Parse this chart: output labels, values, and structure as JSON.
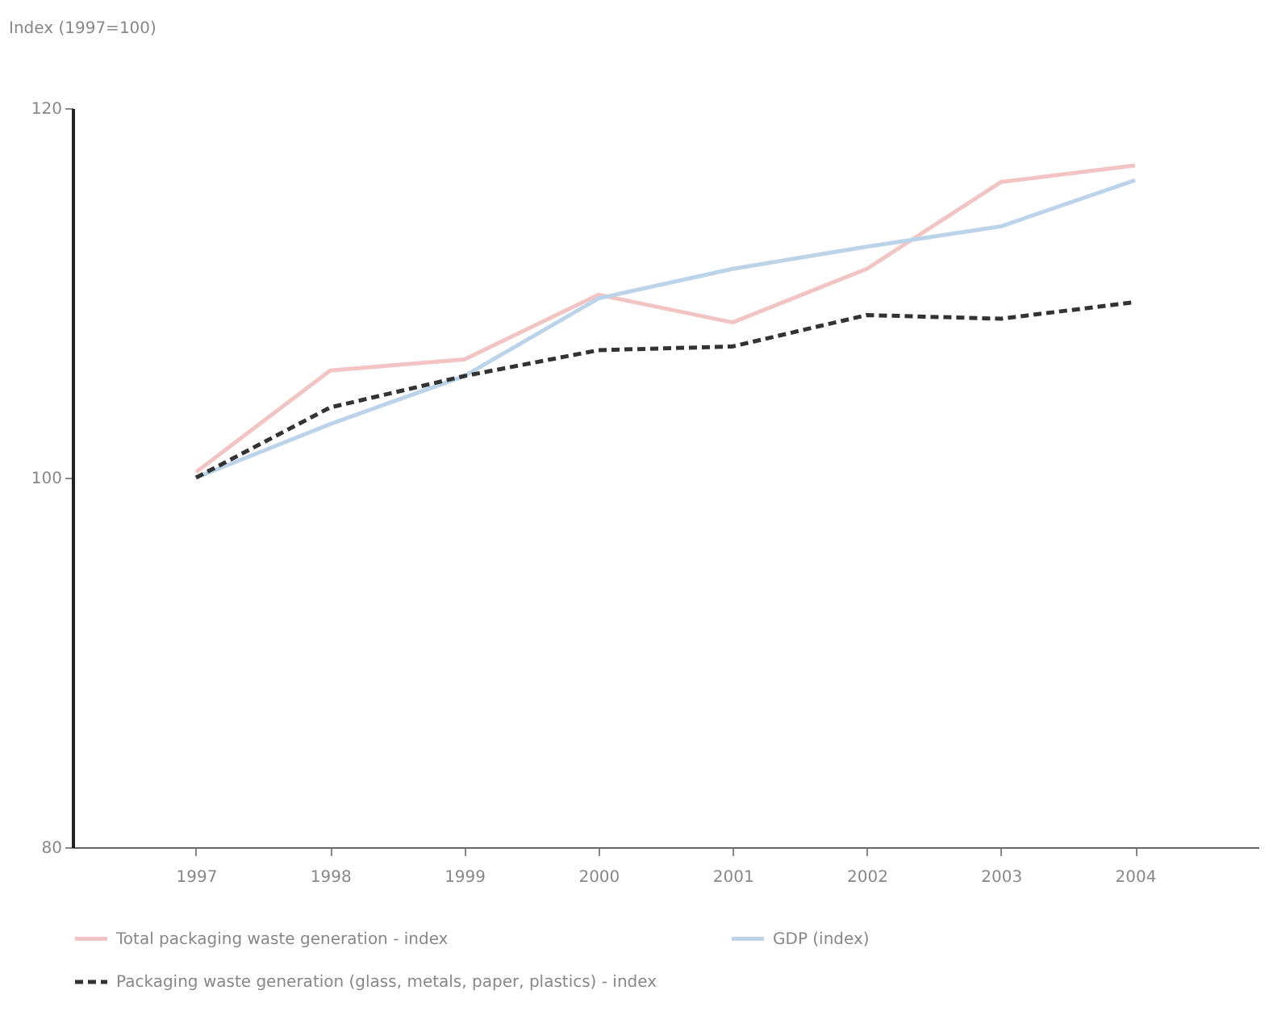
{
  "chart_data": {
    "type": "line",
    "ylabel": "Index (1997=100)",
    "categories": [
      "1997",
      "1998",
      "1999",
      "2000",
      "2001",
      "2002",
      "2003",
      "2004"
    ],
    "series": [
      {
        "name": "Total packaging waste generation - index",
        "color": "#f2c4c4",
        "line_style": "solid",
        "values": [
          100.3,
          105.8,
          106.4,
          109.9,
          108.4,
          111.3,
          116.0,
          116.9
        ]
      },
      {
        "name": "GDP (index)",
        "color": "#bcd4ea",
        "line_style": "solid",
        "values": [
          100,
          102.9,
          105.5,
          109.7,
          111.3,
          112.5,
          113.6,
          116.1
        ]
      },
      {
        "name": "Packaging waste generation (glass, metals, paper, plastics) - index",
        "color": "#333333",
        "line_style": "dashed",
        "values": [
          100,
          103.8,
          105.5,
          106.9,
          107.1,
          108.8,
          108.6,
          109.5
        ]
      }
    ],
    "ylim": [
      80,
      120
    ],
    "yticks": [
      80,
      100,
      120
    ],
    "grid": false,
    "legend": "bottom",
    "marker": "none"
  }
}
